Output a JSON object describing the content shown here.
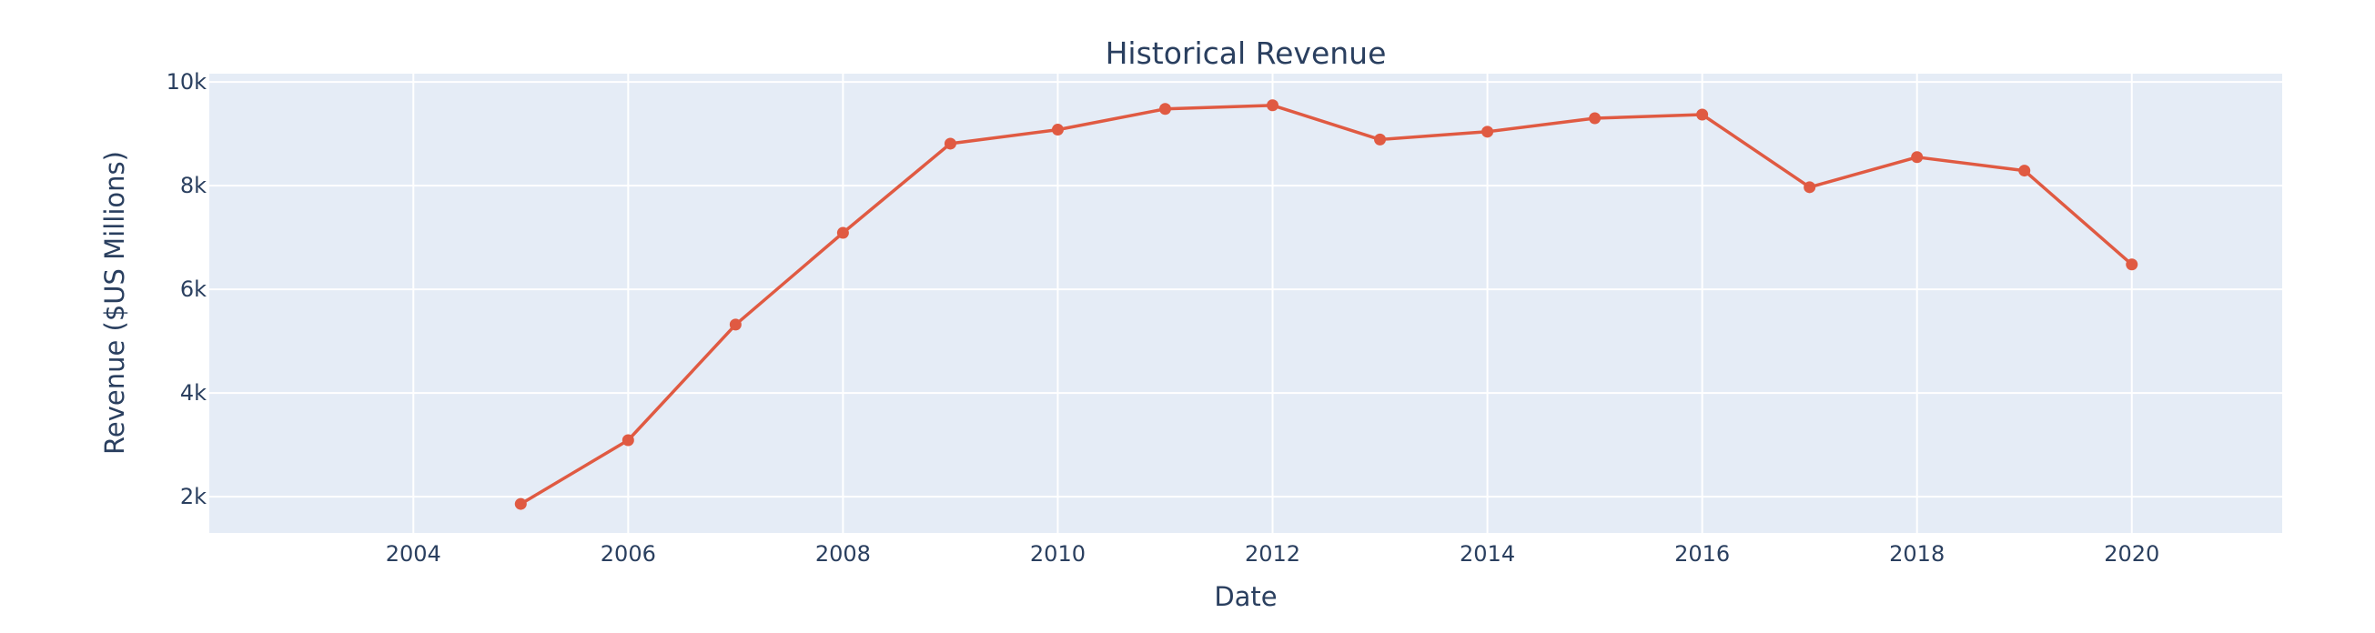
{
  "chart_data": {
    "type": "line",
    "title": "Historical Revenue",
    "xlabel": "Date",
    "ylabel": "Revenue ($US Millions)",
    "x": [
      2005,
      2006,
      2007,
      2008,
      2009,
      2010,
      2011,
      2012,
      2013,
      2014,
      2015,
      2016,
      2017,
      2018,
      2019,
      2020
    ],
    "series": [
      {
        "values": [
          1860,
          3090,
          5320,
          7090,
          8810,
          9080,
          9480,
          9550,
          8890,
          9040,
          9300,
          9370,
          7970,
          8550,
          8290,
          6480
        ]
      }
    ],
    "xlim": [
      2002.1,
      2021.4
    ],
    "ylim": [
      1300,
      10160
    ],
    "x_ticks": [
      2004,
      2006,
      2008,
      2010,
      2012,
      2014,
      2016,
      2018,
      2020
    ],
    "x_tick_labels": [
      "2004",
      "2006",
      "2008",
      "2010",
      "2012",
      "2014",
      "2016",
      "2018",
      "2020"
    ],
    "y_ticks": [
      2000,
      4000,
      6000,
      8000,
      10000
    ],
    "y_tick_labels": [
      "2k",
      "4k",
      "6k",
      "8k",
      "10k"
    ],
    "grid": true,
    "line_color": "#e05a42",
    "plot_bg": "#e5ecf6",
    "grid_color": "#ffffff"
  }
}
